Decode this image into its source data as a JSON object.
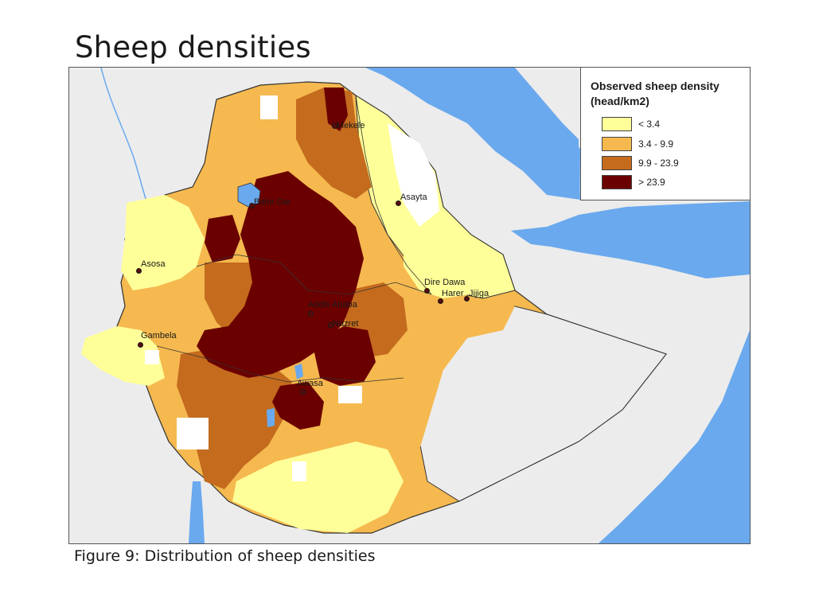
{
  "title": "Sheep densities",
  "caption": "Figure  9: Distribution of sheep densities",
  "legend": {
    "title_line1": "Observed sheep density",
    "title_line2": "(head/km2)",
    "classes": [
      {
        "label": "< 3.4",
        "color": "#ffff99"
      },
      {
        "label": "3.4 - 9.9",
        "color": "#f5b94f"
      },
      {
        "label": "9.9 - 23.9",
        "color": "#c46b1e"
      },
      {
        "label": "> 23.9",
        "color": "#6b0000"
      }
    ]
  },
  "colors": {
    "water": "#6aa9ee",
    "land_background": "#ececec",
    "no_data": "#ffffff",
    "border": "#333333"
  },
  "cities": [
    {
      "name": "Mekele"
    },
    {
      "name": "Bahir Dar"
    },
    {
      "name": "Asayta"
    },
    {
      "name": "Asosa"
    },
    {
      "name": "Dire Dawa"
    },
    {
      "name": "Harer"
    },
    {
      "name": "Jijiga"
    },
    {
      "name": "Addis Ababa"
    },
    {
      "name": "Nazret"
    },
    {
      "name": "Gambela"
    },
    {
      "name": "Awasa"
    }
  ]
}
